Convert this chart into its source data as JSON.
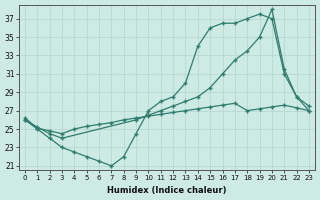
{
  "xlabel": "Humidex (Indice chaleur)",
  "bg_color": "#ceeae4",
  "line_color": "#2e7d6e",
  "grid_color": "#b8d8d0",
  "xlim": [
    -0.5,
    23.5
  ],
  "ylim": [
    20.5,
    38.5
  ],
  "yticks": [
    21,
    23,
    25,
    27,
    29,
    31,
    33,
    35,
    37
  ],
  "xticks": [
    0,
    1,
    2,
    3,
    4,
    5,
    6,
    7,
    8,
    9,
    10,
    11,
    12,
    13,
    14,
    15,
    16,
    17,
    18,
    19,
    20,
    21,
    22,
    23
  ],
  "line1_x": [
    0,
    1,
    2,
    3,
    4,
    5,
    6,
    7,
    8,
    9,
    10,
    11,
    12,
    13,
    14,
    15,
    16,
    17,
    18,
    19,
    20,
    21,
    22,
    23
  ],
  "line1_y": [
    26,
    25,
    24,
    23,
    22.5,
    22,
    21.5,
    21,
    22,
    24.5,
    27,
    28,
    28.5,
    30,
    34,
    36,
    36.5,
    36.5,
    37,
    37.5,
    37,
    31,
    28.5,
    27
  ],
  "line2_x": [
    0,
    1,
    2,
    3,
    9,
    10,
    11,
    12,
    13,
    14,
    15,
    16,
    17,
    18,
    19,
    20,
    21,
    22,
    23
  ],
  "line2_y": [
    26,
    25.2,
    24.5,
    24,
    26,
    26.5,
    27,
    27.5,
    28,
    28.5,
    29.5,
    31,
    32.5,
    33.5,
    35,
    38,
    31.5,
    28.5,
    27.5
  ],
  "line3_x": [
    0,
    1,
    2,
    3,
    4,
    5,
    6,
    7,
    8,
    9,
    10,
    11,
    12,
    13,
    14,
    15,
    16,
    17,
    18,
    19,
    20,
    21,
    22,
    23
  ],
  "line3_y": [
    26.2,
    25.1,
    24.8,
    24.5,
    25,
    25.3,
    25.5,
    25.7,
    26,
    26.2,
    26.4,
    26.6,
    26.8,
    27,
    27.2,
    27.4,
    27.6,
    27.8,
    27.0,
    27.2,
    27.4,
    27.6,
    27.3,
    27.0
  ]
}
